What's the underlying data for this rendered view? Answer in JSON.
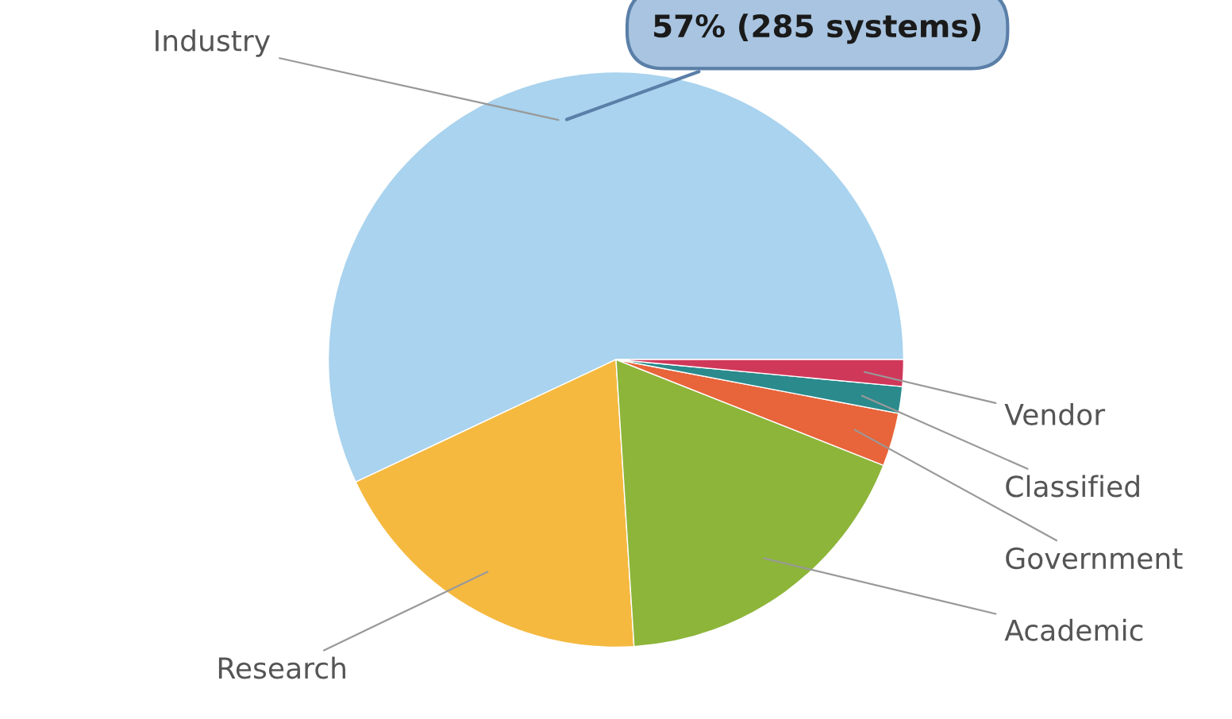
{
  "chart_data": {
    "type": "pie",
    "categories": [
      "Industry",
      "Research",
      "Academic",
      "Government",
      "Classified",
      "Vendor"
    ],
    "values": [
      57,
      19,
      18,
      3,
      1.5,
      1.5
    ],
    "colors": [
      "#a9d3ee",
      "#f5b940",
      "#8db53a",
      "#e8643a",
      "#2a8a8c",
      "#d0385a"
    ],
    "value_labels": [
      "57% (285 systems)",
      null,
      null,
      null,
      null,
      null
    ]
  }
}
